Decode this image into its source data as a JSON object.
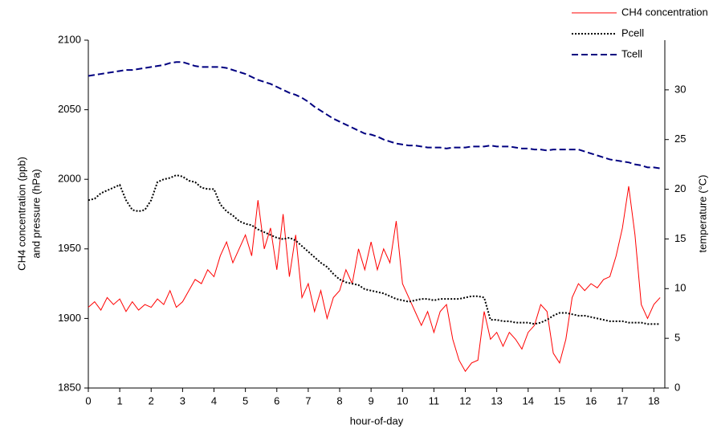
{
  "chart_data": {
    "type": "line",
    "xlabel": "hour-of-day",
    "ylabel": [
      "CH4 concentration (ppb)",
      "and pressure (hPa)"
    ],
    "y2label": "temperature (°C)",
    "legend_position": "top-right",
    "grid": false,
    "xlim": [
      0,
      18.35
    ],
    "xticks": [
      0,
      1,
      2,
      3,
      4,
      5,
      6,
      7,
      8,
      9,
      10,
      11,
      12,
      13,
      14,
      15,
      16,
      17,
      18
    ],
    "ylim": [
      1850,
      2100
    ],
    "yticks": [
      1850,
      1900,
      1950,
      2000,
      2050,
      2100
    ],
    "y2lim": [
      0,
      35
    ],
    "y2ticks": [
      0,
      5,
      10,
      15,
      20,
      25,
      30
    ],
    "x": [
      0,
      0.2,
      0.4,
      0.6,
      0.8,
      1,
      1.2,
      1.4,
      1.6,
      1.8,
      2,
      2.2,
      2.4,
      2.6,
      2.8,
      3,
      3.2,
      3.4,
      3.6,
      3.8,
      4,
      4.2,
      4.4,
      4.6,
      4.8,
      5,
      5.2,
      5.4,
      5.6,
      5.8,
      6,
      6.2,
      6.4,
      6.6,
      6.8,
      7,
      7.2,
      7.4,
      7.6,
      7.8,
      8,
      8.2,
      8.4,
      8.6,
      8.8,
      9,
      9.2,
      9.4,
      9.6,
      9.8,
      10,
      10.2,
      10.4,
      10.6,
      10.8,
      11,
      11.2,
      11.4,
      11.6,
      11.8,
      12,
      12.2,
      12.4,
      12.6,
      12.8,
      13,
      13.2,
      13.4,
      13.6,
      13.8,
      14,
      14.2,
      14.4,
      14.6,
      14.8,
      15,
      15.2,
      15.4,
      15.6,
      15.8,
      16,
      16.2,
      16.4,
      16.6,
      16.8,
      17,
      17.2,
      17.4,
      17.6,
      17.8,
      18,
      18.2
    ],
    "series": [
      {
        "name": "CH4 concentration",
        "color": "#ff0000",
        "style": "solid",
        "values": [
          1908,
          1912,
          1906,
          1915,
          1910,
          1914,
          1905,
          1912,
          1906,
          1910,
          1908,
          1914,
          1910,
          1920,
          1908,
          1912,
          1920,
          1928,
          1925,
          1935,
          1930,
          1945,
          1955,
          1940,
          1950,
          1960,
          1945,
          1985,
          1950,
          1965,
          1935,
          1975,
          1930,
          1960,
          1915,
          1925,
          1905,
          1920,
          1900,
          1915,
          1920,
          1935,
          1925,
          1950,
          1935,
          1955,
          1935,
          1950,
          1940,
          1970,
          1925,
          1915,
          1905,
          1895,
          1905,
          1890,
          1905,
          1910,
          1885,
          1870,
          1862,
          1868,
          1870,
          1905,
          1885,
          1890,
          1880,
          1890,
          1885,
          1878,
          1890,
          1895,
          1910,
          1905,
          1875,
          1868,
          1885,
          1915,
          1925,
          1920,
          1925,
          1922,
          1928,
          1930,
          1945,
          1965,
          1995,
          1960,
          1910,
          1900,
          1910,
          1915
        ]
      },
      {
        "name": "Pcell",
        "color": "#000000",
        "style": "dotted",
        "values": [
          1985,
          1986,
          1990,
          1992,
          1994,
          1996,
          1985,
          1978,
          1977,
          1978,
          1985,
          1998,
          2000,
          2001,
          2003,
          2002,
          1999,
          1998,
          1994,
          1993,
          1993,
          1982,
          1977,
          1974,
          1970,
          1968,
          1967,
          1964,
          1962,
          1960,
          1958,
          1957,
          1958,
          1956,
          1952,
          1948,
          1944,
          1940,
          1937,
          1932,
          1928,
          1926,
          1925,
          1924,
          1921,
          1920,
          1919,
          1918,
          1916,
          1914,
          1913,
          1912,
          1913,
          1914,
          1914,
          1913,
          1914,
          1914,
          1914,
          1914,
          1915,
          1916,
          1916,
          1915,
          1899,
          1899,
          1898,
          1898,
          1897,
          1897,
          1897,
          1896,
          1897,
          1899,
          1902,
          1904,
          1904,
          1903,
          1902,
          1902,
          1901,
          1900,
          1899,
          1898,
          1898,
          1898,
          1897,
          1897,
          1897,
          1896,
          1896,
          1896
        ]
      },
      {
        "name": "Tcell",
        "color": "#000080",
        "style": "dashed",
        "axis": "y2",
        "values": [
          31.4,
          31.5,
          31.6,
          31.7,
          31.8,
          31.9,
          32.0,
          32.0,
          32.1,
          32.2,
          32.3,
          32.4,
          32.5,
          32.7,
          32.8,
          32.8,
          32.6,
          32.4,
          32.3,
          32.3,
          32.3,
          32.3,
          32.2,
          32.0,
          31.8,
          31.6,
          31.3,
          31.0,
          30.8,
          30.6,
          30.3,
          30.0,
          29.7,
          29.5,
          29.2,
          28.8,
          28.3,
          27.9,
          27.5,
          27.1,
          26.8,
          26.5,
          26.2,
          25.9,
          25.6,
          25.5,
          25.3,
          25.0,
          24.8,
          24.6,
          24.5,
          24.4,
          24.4,
          24.3,
          24.2,
          24.2,
          24.2,
          24.1,
          24.2,
          24.2,
          24.2,
          24.3,
          24.3,
          24.3,
          24.4,
          24.3,
          24.3,
          24.3,
          24.2,
          24.1,
          24.1,
          24.0,
          24.0,
          23.9,
          24.0,
          24.0,
          24.0,
          24.0,
          24.0,
          23.8,
          23.6,
          23.4,
          23.2,
          23.0,
          22.9,
          22.8,
          22.7,
          22.5,
          22.4,
          22.2,
          22.2,
          22.1
        ]
      }
    ]
  }
}
